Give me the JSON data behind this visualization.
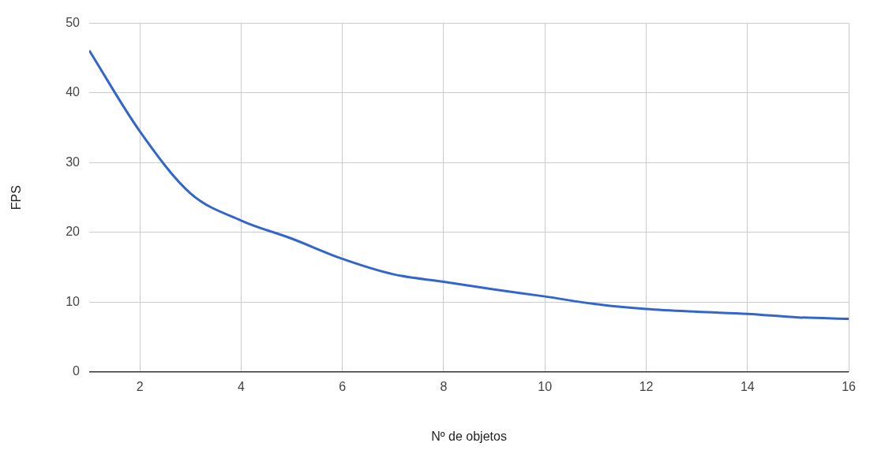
{
  "chart_data": {
    "type": "line",
    "xlabel": "Nº de objetos",
    "ylabel": "FPS",
    "x": [
      1,
      2,
      3,
      4,
      5,
      6,
      7,
      8,
      9,
      10,
      11,
      12,
      13,
      14,
      15,
      16
    ],
    "series": [
      {
        "color": "#3366cc",
        "values": [
          46.1,
          34.5,
          25.6,
          21.7,
          19.1,
          16.2,
          14.0,
          12.9,
          11.8,
          10.8,
          9.7,
          9.0,
          8.6,
          8.3,
          7.8,
          7.6
        ]
      }
    ],
    "xlim": [
      1,
      16
    ],
    "xticks": [
      2,
      4,
      6,
      8,
      10,
      12,
      14,
      16
    ],
    "ylim": [
      0,
      50
    ],
    "yticks": [
      0,
      10,
      20,
      30,
      40,
      50
    ],
    "grid": true,
    "legend": false,
    "marker": "none",
    "line_style": "solid"
  }
}
